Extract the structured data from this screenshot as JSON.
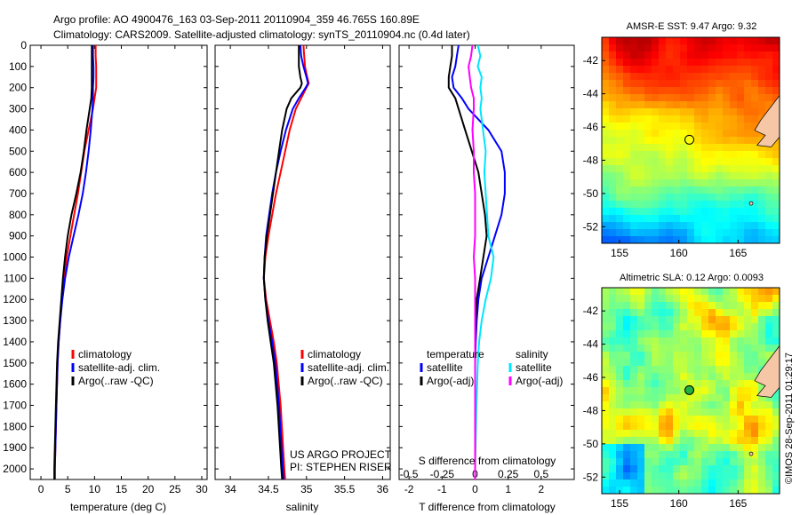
{
  "title_line1": "Argo profile: AO 4900476_163 03-Sep-2011 20110904_359 46.765S 160.89E",
  "title_line2": "Climatology: CARS2009. Satellite-adjusted climatology: synTS_20110904.nc (0.4d later)",
  "timestamp": "©IMOS 28-Sep-2011 01:29:17",
  "colors": {
    "climatology": "#ff0000",
    "satellite": "#0000ff",
    "argo": "#000000",
    "sal_satellite": "#00e5ff",
    "sal_argo": "#ff00ff"
  },
  "chart_data": [
    {
      "type": "line",
      "xlabel": "temperature (deg C)",
      "xlim": [
        -2,
        31
      ],
      "ylim": [
        0,
        2050
      ],
      "xticks": [
        "0",
        "5",
        "10",
        "15",
        "20",
        "25",
        "30"
      ],
      "xtick_values": [
        0,
        5,
        10,
        15,
        20,
        25,
        30
      ],
      "yticks": [
        "0",
        "100",
        "200",
        "300",
        "400",
        "500",
        "600",
        "700",
        "800",
        "900",
        "1000",
        "1100",
        "1200",
        "1300",
        "1400",
        "1500",
        "1600",
        "1700",
        "1800",
        "1900",
        "2000"
      ],
      "ytick_values": [
        0,
        100,
        200,
        300,
        400,
        500,
        600,
        700,
        800,
        900,
        1000,
        1100,
        1200,
        1300,
        1400,
        1500,
        1600,
        1700,
        1800,
        1900,
        2000
      ],
      "legend": [
        "climatology",
        "satellite-adj. clim.",
        "Argo(..raw -QC)"
      ],
      "series": [
        {
          "name": "climatology",
          "color": "#ff0000",
          "depth": [
            0,
            50,
            100,
            150,
            200,
            250,
            300,
            400,
            500,
            600,
            700,
            800,
            900,
            1000,
            1100,
            1200,
            1300,
            1400,
            1500,
            1700,
            2000,
            2050
          ],
          "values": [
            10.2,
            10.2,
            10.3,
            10.3,
            10.3,
            10.0,
            9.7,
            8.9,
            8.1,
            7.5,
            6.9,
            6.2,
            5.5,
            4.8,
            4.3,
            3.9,
            3.6,
            3.3,
            3.1,
            2.9,
            2.6,
            2.6
          ]
        },
        {
          "name": "satellite-adj. clim.",
          "color": "#0000ff",
          "depth": [
            0,
            50,
            100,
            150,
            200,
            250,
            300,
            400,
            500,
            600,
            700,
            800,
            900,
            1000,
            1100,
            1200,
            1300,
            1400,
            1500,
            1700,
            2000,
            2050
          ],
          "values": [
            9.7,
            9.7,
            9.8,
            9.8,
            9.7,
            9.7,
            9.6,
            9.3,
            8.9,
            8.4,
            7.8,
            7.0,
            6.1,
            5.2,
            4.5,
            4.0,
            3.6,
            3.3,
            3.1,
            2.9,
            2.6,
            2.6
          ]
        },
        {
          "name": "Argo(..raw -QC)",
          "color": "#000000",
          "depth": [
            0,
            50,
            100,
            150,
            200,
            250,
            300,
            400,
            500,
            600,
            700,
            800,
            900,
            1000,
            1100,
            1200,
            1300,
            1400,
            1500,
            1700,
            2000,
            2050
          ],
          "values": [
            9.5,
            9.5,
            9.5,
            9.5,
            9.5,
            9.4,
            9.1,
            8.5,
            8.0,
            7.4,
            6.6,
            5.7,
            5.0,
            4.5,
            4.1,
            3.8,
            3.5,
            3.2,
            3.0,
            2.8,
            2.5,
            2.5
          ]
        }
      ]
    },
    {
      "type": "line",
      "xlabel": "salinity",
      "xlim": [
        33.8,
        36.1
      ],
      "ylim": [
        0,
        2050
      ],
      "xticks": [
        "34",
        "34.5",
        "35",
        "35.5",
        "36"
      ],
      "xtick_values": [
        34,
        34.5,
        35,
        35.5,
        36
      ],
      "legend": [
        "climatology",
        "satellite-adj. clim.",
        "Argo(..raw -QC)"
      ],
      "annotation": [
        "US ARGO PROJECT",
        "PI: STEPHEN RISER"
      ],
      "series": [
        {
          "name": "climatology",
          "color": "#ff0000",
          "depth": [
            0,
            50,
            100,
            150,
            180,
            200,
            250,
            300,
            400,
            500,
            600,
            700,
            800,
            900,
            1000,
            1100,
            1200,
            1300,
            1400,
            1500,
            1700,
            2000,
            2050
          ],
          "values": [
            34.96,
            34.97,
            34.98,
            35.01,
            35.03,
            35.0,
            34.93,
            34.86,
            34.78,
            34.72,
            34.66,
            34.6,
            34.55,
            34.5,
            34.46,
            34.44,
            34.47,
            34.52,
            34.57,
            34.61,
            34.66,
            34.71,
            34.72
          ]
        },
        {
          "name": "satellite-adj. clim.",
          "color": "#0000ff",
          "depth": [
            0,
            50,
            100,
            150,
            180,
            200,
            250,
            300,
            400,
            500,
            600,
            700,
            800,
            900,
            1000,
            1100,
            1200,
            1300,
            1400,
            1500,
            1700,
            2000,
            2050
          ],
          "values": [
            34.92,
            34.93,
            34.96,
            35.0,
            35.02,
            34.99,
            34.9,
            34.82,
            34.73,
            34.66,
            34.6,
            34.55,
            34.51,
            34.47,
            34.45,
            34.44,
            34.46,
            34.5,
            34.55,
            34.59,
            34.64,
            34.69,
            34.7
          ]
        },
        {
          "name": "Argo(..raw -QC)",
          "color": "#000000",
          "depth": [
            0,
            50,
            100,
            150,
            180,
            200,
            250,
            300,
            400,
            500,
            600,
            700,
            800,
            900,
            1000,
            1100,
            1200,
            1300,
            1400,
            1500,
            1700,
            2000,
            2050
          ],
          "values": [
            34.9,
            34.9,
            34.9,
            34.92,
            34.94,
            34.92,
            34.8,
            34.74,
            34.68,
            34.64,
            34.6,
            34.56,
            34.52,
            34.48,
            34.45,
            34.44,
            34.46,
            34.49,
            34.53,
            34.57,
            34.62,
            34.67,
            34.68
          ]
        }
      ]
    },
    {
      "type": "line",
      "xlabel": "T difference from climatology",
      "xlabel_top": "S difference from climatology",
      "xlim": [
        -2.3,
        3.0
      ],
      "ylim": [
        0,
        2050
      ],
      "xticks": [
        "-2",
        "-1",
        "0",
        "1",
        "2"
      ],
      "xtick_values": [
        -2,
        -1,
        0,
        1,
        2
      ],
      "xticks_top": [
        "-0.5",
        "-0.25",
        "0",
        "0.25",
        "0.5"
      ],
      "xtick_top_values": [
        -0.5,
        -0.25,
        0,
        0.25,
        0.5
      ],
      "legend_left": [
        "temperature",
        "satellite",
        "Argo(-adj)"
      ],
      "legend_right": [
        "salinity",
        "satellite",
        "Argo(-adj)"
      ],
      "series": [
        {
          "name": "temperature satellite",
          "color": "#0000ff",
          "depth": [
            0,
            50,
            100,
            150,
            200,
            250,
            300,
            400,
            500,
            600,
            700,
            800,
            900,
            1000,
            1100,
            1200,
            1300,
            1400,
            1500,
            1700,
            2000,
            2050
          ],
          "values": [
            -0.5,
            -0.55,
            -0.6,
            -0.7,
            -0.65,
            -0.4,
            -0.2,
            0.4,
            0.8,
            0.9,
            0.9,
            0.8,
            0.6,
            0.4,
            0.2,
            0.1,
            0.05,
            0.02,
            0.0,
            0.0,
            0.0,
            0.0
          ]
        },
        {
          "name": "temperature Argo(-adj)",
          "color": "#000000",
          "depth": [
            0,
            50,
            100,
            150,
            200,
            250,
            300,
            400,
            500,
            600,
            700,
            800,
            900,
            1000,
            1100,
            1200,
            1300,
            1400,
            1500,
            1700,
            2000,
            2050
          ],
          "values": [
            -0.7,
            -0.7,
            -0.75,
            -0.8,
            -0.8,
            -0.6,
            -0.5,
            -0.3,
            -0.1,
            0.1,
            0.2,
            0.3,
            0.35,
            0.25,
            0.15,
            0.05,
            0.02,
            0.0,
            0.0,
            0.0,
            0.0,
            0.0
          ]
        },
        {
          "name": "salinity satellite",
          "color": "#00e5ff",
          "depth": [
            0,
            50,
            100,
            150,
            200,
            250,
            300,
            400,
            500,
            600,
            700,
            800,
            900,
            1000,
            1100,
            1200,
            1300,
            1400,
            1500,
            1700,
            2000,
            2050
          ],
          "values": [
            0.02,
            0.04,
            0.02,
            0.05,
            0.04,
            0.05,
            0.04,
            0.06,
            0.08,
            0.07,
            0.08,
            0.09,
            0.1,
            0.14,
            0.12,
            0.08,
            0.05,
            0.03,
            0.02,
            0.01,
            0.0,
            0.0
          ]
        },
        {
          "name": "salinity Argo(-adj)",
          "color": "#ff00ff",
          "depth": [
            0,
            50,
            100,
            150,
            200,
            250,
            300,
            400,
            500,
            600,
            700,
            800,
            900,
            1000,
            1100,
            1200,
            1300,
            1400,
            1500,
            1700,
            2000,
            2050
          ],
          "values": [
            -0.02,
            -0.03,
            -0.05,
            -0.04,
            -0.03,
            -0.01,
            -0.01,
            -0.02,
            -0.01,
            -0.01,
            0.0,
            0.0,
            0.0,
            -0.01,
            0.0,
            0.0,
            0.0,
            0.0,
            0.0,
            0.0,
            0.0,
            0.0
          ]
        }
      ]
    },
    {
      "type": "heatmap",
      "title": "AMSR-E SST: 9.47 Argo: 9.32",
      "xticks": [
        "155",
        "160",
        "165"
      ],
      "xtick_values": [
        155,
        160,
        165
      ],
      "yticks": [
        "-42",
        "-44",
        "-46",
        "-48",
        "-50",
        "-52"
      ],
      "ytick_values": [
        -42,
        -44,
        -46,
        -48,
        -50,
        -52
      ],
      "xlim": [
        153.5,
        168.5
      ],
      "ylim": [
        -53,
        -40.6
      ],
      "marker": {
        "lon": 160.89,
        "lat": -46.765
      }
    },
    {
      "type": "heatmap",
      "title": "Altimetric SLA: 0.12 Argo: 0.0093",
      "xticks": [
        "155",
        "160",
        "165"
      ],
      "xtick_values": [
        155,
        160,
        165
      ],
      "yticks": [
        "-42",
        "-44",
        "-46",
        "-48",
        "-50",
        "-52"
      ],
      "ytick_values": [
        -42,
        -44,
        -46,
        -48,
        -50,
        -52
      ],
      "xlim": [
        153.5,
        168.5
      ],
      "ylim": [
        -53,
        -40.6
      ],
      "marker": {
        "lon": 160.89,
        "lat": -46.765
      }
    }
  ]
}
